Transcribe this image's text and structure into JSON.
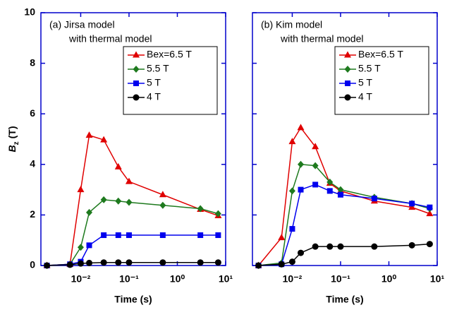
{
  "chart_data": [
    {
      "type": "line",
      "annotation": [
        "(a) Jirsa model",
        "with thermal model"
      ],
      "ylabel": {
        "symbol": "B",
        "sub": "z",
        "unit": "(T)"
      },
      "xlabel": "Time (s)",
      "xscale": "log",
      "xlim": [
        0.0015,
        10
      ],
      "ylim": [
        0,
        10
      ],
      "xticks": [
        {
          "value": 0.01,
          "label": "10⁻²"
        },
        {
          "value": 0.1,
          "label": "10⁻¹"
        },
        {
          "value": 1,
          "label": "10⁰"
        },
        {
          "value": 10,
          "label": "10¹"
        }
      ],
      "yticks": [
        0,
        2,
        4,
        6,
        8,
        10
      ],
      "ytick_labels": true,
      "axis_color": "#0000cc",
      "x": [
        0.002,
        0.006,
        0.01,
        0.015,
        0.03,
        0.06,
        0.1,
        0.5,
        3,
        7
      ],
      "series": [
        {
          "name": "Bex=6.5 T",
          "color": "#e00000",
          "marker": "triangle",
          "values": [
            0,
            0.05,
            3.0,
            5.15,
            4.97,
            3.9,
            3.32,
            2.8,
            2.22,
            1.97
          ]
        },
        {
          "name": "5.5 T",
          "color": "#1e7a1e",
          "marker": "diamond",
          "values": [
            0,
            0.05,
            0.72,
            2.1,
            2.6,
            2.55,
            2.5,
            2.38,
            2.25,
            2.05
          ]
        },
        {
          "name": "5 T",
          "color": "#0000ee",
          "marker": "square",
          "values": [
            0,
            0.05,
            0.15,
            0.8,
            1.2,
            1.2,
            1.2,
            1.2,
            1.2,
            1.2
          ]
        },
        {
          "name": "4 T",
          "color": "#000000",
          "marker": "circle",
          "values": [
            0,
            0.03,
            0.08,
            0.1,
            0.12,
            0.12,
            0.12,
            0.12,
            0.12,
            0.12
          ]
        }
      ]
    },
    {
      "type": "line",
      "annotation": [
        "(b) Kim model",
        "with thermal model"
      ],
      "xlabel": "Time (s)",
      "xscale": "log",
      "xlim": [
        0.0015,
        10
      ],
      "ylim": [
        0,
        10
      ],
      "xticks": [
        {
          "value": 0.01,
          "label": "10⁻²"
        },
        {
          "value": 0.1,
          "label": "10⁻¹"
        },
        {
          "value": 1,
          "label": "10⁰"
        },
        {
          "value": 10,
          "label": "10¹"
        }
      ],
      "yticks": [
        0,
        2,
        4,
        6,
        8,
        10
      ],
      "ytick_labels": false,
      "axis_color": "#0000cc",
      "x": [
        0.002,
        0.006,
        0.01,
        0.015,
        0.03,
        0.06,
        0.1,
        0.5,
        3,
        7
      ],
      "series": [
        {
          "name": "Bex=6.5 T",
          "color": "#e00000",
          "marker": "triangle",
          "values": [
            0,
            1.1,
            4.9,
            5.45,
            4.7,
            3.25,
            2.95,
            2.55,
            2.3,
            2.05
          ]
        },
        {
          "name": "5.5 T",
          "color": "#1e7a1e",
          "marker": "diamond",
          "values": [
            0,
            0.1,
            2.95,
            4.0,
            3.95,
            3.3,
            3.0,
            2.7,
            2.45,
            2.25
          ]
        },
        {
          "name": "5 T",
          "color": "#0000ee",
          "marker": "square",
          "values": [
            0,
            0.05,
            1.45,
            3.0,
            3.2,
            2.95,
            2.8,
            2.65,
            2.45,
            2.3
          ]
        },
        {
          "name": "4 T",
          "color": "#000000",
          "marker": "circle",
          "values": [
            0,
            0.05,
            0.15,
            0.5,
            0.75,
            0.75,
            0.75,
            0.75,
            0.8,
            0.85
          ]
        }
      ]
    }
  ]
}
